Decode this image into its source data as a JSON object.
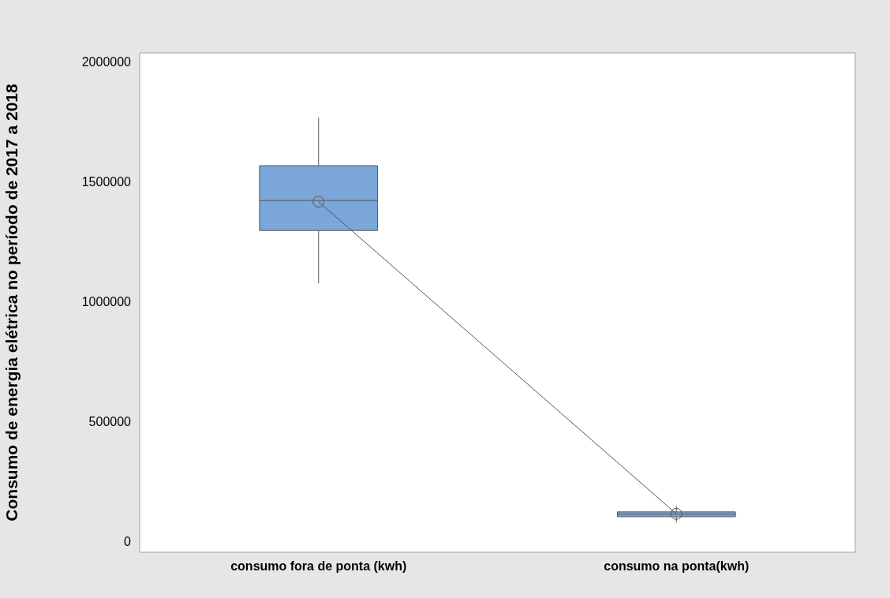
{
  "chart_data": {
    "type": "box",
    "ylabel": "Consumo de energia elétrica no período de 2017 a 2018",
    "categories": [
      "consumo fora de ponta (kwh)",
      "consumo na ponta(kwh)"
    ],
    "boxes": [
      {
        "low": 1080000,
        "q1": 1300000,
        "median": 1425000,
        "q3": 1570000,
        "high": 1770000
      },
      {
        "low": 84000,
        "q1": 108000,
        "median": 118000,
        "q3": 128000,
        "high": 152000
      }
    ],
    "color": "#7ba6d9",
    "series": [
      {
        "type": "line",
        "color": "#555555",
        "values": [
          1420000,
          120000
        ],
        "marker": "circle"
      }
    ],
    "ylim": [
      -40000,
      2040000
    ],
    "yticks": [
      0,
      500000,
      1000000,
      1500000,
      2000000
    ],
    "grid": false,
    "legend": false
  }
}
